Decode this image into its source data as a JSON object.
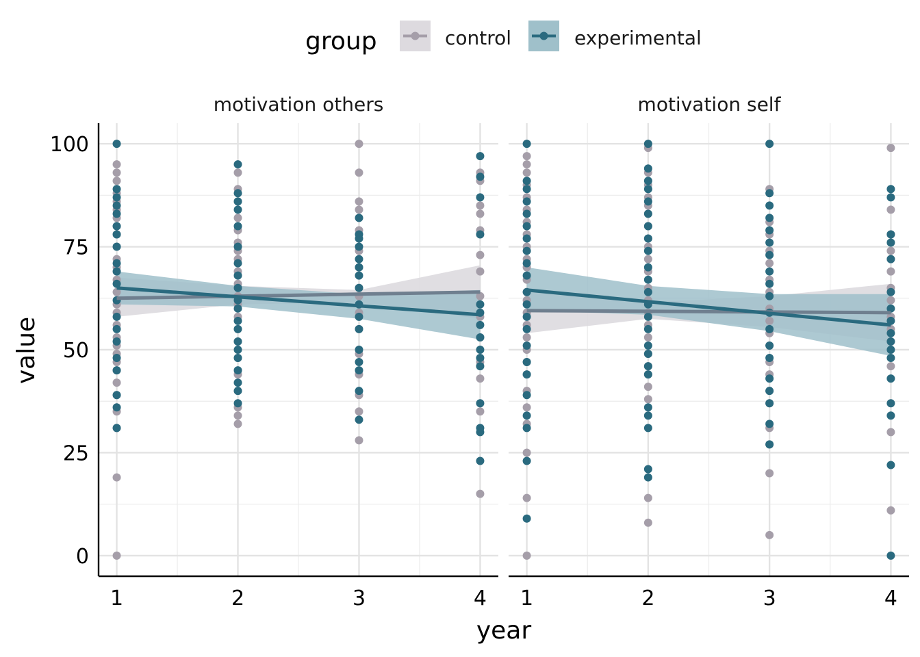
{
  "chart_data": {
    "type": "scatter",
    "xlabel": "year",
    "ylabel": "value",
    "x_ticks": [
      1,
      2,
      3,
      4
    ],
    "y_ticks": [
      0,
      25,
      50,
      75,
      100
    ],
    "xlim": [
      0.85,
      4.15
    ],
    "ylim": [
      -5,
      105
    ],
    "grid": true,
    "legend": {
      "title": "group",
      "position": "top",
      "entries": [
        "control",
        "experimental"
      ]
    },
    "colors": {
      "control": "#a59ea9",
      "experimental": "#2a6a7f",
      "control_band": "#dddadf",
      "experimental_band": "#9fc0ca",
      "control_line": "#6f7f8f"
    },
    "series": [
      "control",
      "experimental"
    ],
    "panels": [
      {
        "title": "motivation others",
        "points": {
          "control": [
            {
              "x": 1,
              "y": [
                0,
                19,
                31,
                35,
                39,
                42,
                45,
                47,
                49,
                51,
                53,
                56,
                59,
                61,
                64,
                67,
                70,
                72,
                75,
                78,
                80,
                82,
                84,
                86,
                88,
                91,
                93,
                95
              ]
            },
            {
              "x": 2,
              "y": [
                32,
                34,
                36,
                40,
                44,
                48,
                52,
                55,
                58,
                61,
                63,
                66,
                69,
                72,
                74,
                76,
                79,
                82,
                86,
                89,
                93
              ]
            },
            {
              "x": 3,
              "y": [
                28,
                35,
                39,
                44,
                49,
                55,
                59,
                63,
                65,
                70,
                74,
                79,
                82,
                84,
                86,
                93,
                100
              ]
            },
            {
              "x": 4,
              "y": [
                15,
                35,
                43,
                47,
                53,
                58,
                63,
                69,
                73,
                79,
                83,
                85,
                91,
                93
              ]
            }
          ],
          "experimental": [
            {
              "x": 1,
              "y": [
                31,
                36,
                39,
                45,
                48,
                52,
                55,
                58,
                62,
                66,
                69,
                71,
                75,
                78,
                80,
                83,
                85,
                87,
                89,
                100
              ]
            },
            {
              "x": 2,
              "y": [
                37,
                40,
                42,
                45,
                48,
                50,
                52,
                55,
                57,
                60,
                62,
                65,
                68,
                71,
                75,
                80,
                84,
                86,
                88,
                95
              ]
            },
            {
              "x": 3,
              "y": [
                33,
                40,
                45,
                47,
                50,
                55,
                58,
                61,
                65,
                68,
                70,
                72,
                75,
                77,
                78,
                82
              ]
            },
            {
              "x": 4,
              "y": [
                23,
                30,
                31,
                37,
                46,
                48,
                50,
                53,
                56,
                59,
                61,
                78,
                87,
                92,
                97
              ]
            }
          ]
        },
        "fit": {
          "control": {
            "start": 62.5,
            "end": 64.0,
            "band_lo": [
              58.0,
              61.0,
              61.5,
              57.5
            ],
            "band_hi": [
              67.5,
              65.5,
              64.5,
              70.5
            ]
          },
          "experimental": {
            "start": 65.0,
            "end": 58.5,
            "band_lo": [
              61.0,
              60.5,
              57.5,
              52.5
            ],
            "band_hi": [
              69.0,
              65.5,
              63.5,
              64.5
            ]
          }
        }
      },
      {
        "title": "motivation self",
        "points": {
          "control": [
            {
              "x": 1,
              "y": [
                0,
                14,
                25,
                32,
                36,
                40,
                44,
                47,
                50,
                53,
                56,
                59,
                62,
                64,
                67,
                70,
                72,
                75,
                78,
                81,
                84,
                87,
                90,
                93,
                95,
                97
              ]
            },
            {
              "x": 2,
              "y": [
                8,
                14,
                38,
                41,
                44,
                46,
                49,
                53,
                56,
                59,
                62,
                65,
                69,
                72,
                75,
                77,
                80,
                83,
                85,
                87,
                90,
                93,
                99
              ]
            },
            {
              "x": 3,
              "y": [
                5,
                20,
                27,
                31,
                37,
                40,
                44,
                47,
                51,
                54,
                57,
                60,
                64,
                67,
                71,
                74,
                78,
                81,
                89
              ]
            },
            {
              "x": 4,
              "y": [
                11,
                30,
                46,
                52,
                55,
                58,
                62,
                65,
                69,
                72,
                74,
                78,
                84,
                99
              ]
            }
          ],
          "experimental": [
            {
              "x": 1,
              "y": [
                9,
                23,
                31,
                34,
                39,
                44,
                47,
                51,
                55,
                58,
                61,
                64,
                68,
                71,
                74,
                77,
                80,
                83,
                86,
                89,
                91,
                100
              ]
            },
            {
              "x": 2,
              "y": [
                19,
                21,
                31,
                34,
                36,
                44,
                46,
                49,
                51,
                55,
                58,
                61,
                64,
                67,
                70,
                74,
                77,
                80,
                83,
                86,
                89,
                91,
                94,
                100
              ]
            },
            {
              "x": 3,
              "y": [
                27,
                32,
                37,
                40,
                43,
                48,
                51,
                55,
                59,
                63,
                66,
                69,
                73,
                76,
                79,
                82,
                85,
                88,
                100
              ]
            },
            {
              "x": 4,
              "y": [
                0,
                22,
                34,
                37,
                43,
                48,
                50,
                52,
                54,
                57,
                60,
                64,
                72,
                76,
                78,
                87,
                89
              ]
            }
          ]
        },
        "fit": {
          "control": {
            "start": 59.5,
            "end": 59.0,
            "band_lo": [
              54.0,
              57.5,
              55.5,
              52.0
            ],
            "band_hi": [
              65.0,
              61.5,
              63.0,
              66.0
            ]
          },
          "experimental": {
            "start": 64.5,
            "end": 56.0,
            "band_lo": [
              59.5,
              58.5,
              54.5,
              48.5
            ],
            "band_hi": [
              70.0,
              65.5,
              63.5,
              63.5
            ]
          }
        }
      }
    ]
  }
}
